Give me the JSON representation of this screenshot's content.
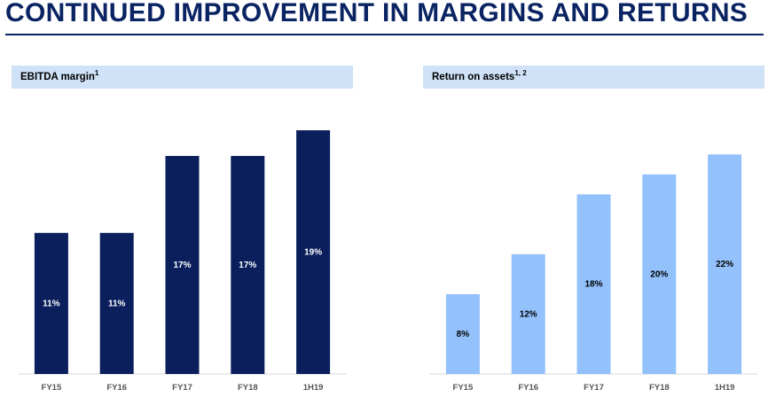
{
  "title": "CONTINUED IMPROVEMENT IN MARGINS AND RETURNS",
  "colors": {
    "title": "#0a2463",
    "header_bg": "#cfe2f8",
    "left_bars": "#0a1f5c",
    "right_bars": "#92c1fb"
  },
  "panels": [
    {
      "header": "EBITDA margin",
      "footnote": "1"
    },
    {
      "header": "Return on assets",
      "footnote": "1, 2"
    }
  ],
  "chart_data": [
    {
      "type": "bar",
      "title": "EBITDA margin",
      "categories": [
        "FY15",
        "FY16",
        "FY17",
        "FY18",
        "1H19"
      ],
      "values": [
        11,
        11,
        17,
        17,
        19
      ],
      "value_labels": [
        "11%",
        "11%",
        "17%",
        "17%",
        "19%"
      ],
      "unit": "%",
      "ylim": [
        0,
        19
      ],
      "grid": false,
      "bar_color": "#0a1f5c",
      "label_color": "#ffffff"
    },
    {
      "type": "bar",
      "title": "Return on assets",
      "categories": [
        "FY15",
        "FY16",
        "FY17",
        "FY18",
        "1H19"
      ],
      "values": [
        8,
        12,
        18,
        20,
        22
      ],
      "value_labels": [
        "8%",
        "12%",
        "18%",
        "20%",
        "22%"
      ],
      "unit": "%",
      "ylim": [
        0,
        23
      ],
      "grid": false,
      "bar_color": "#92c1fb",
      "label_color": "#000000"
    }
  ]
}
